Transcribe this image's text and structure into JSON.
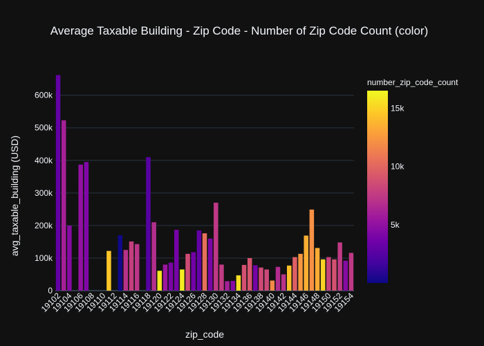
{
  "theme": {
    "background": "#111111",
    "plot_background": "#111111",
    "grid_color": "#283442",
    "text_color": "#f2f5fa"
  },
  "chart_data": {
    "type": "bar",
    "title": "Average Taxable Building - Zip Code - Number of Zip Code Count (color)",
    "xlabel": "zip_code",
    "ylabel": "avg_taxable_building (USD)",
    "ylim": [
      0,
      680000
    ],
    "xlim": [
      19101.5,
      19154.5
    ],
    "grid": true,
    "y_ticks": [
      0,
      100000,
      200000,
      300000,
      400000,
      500000,
      600000
    ],
    "y_tick_labels": [
      "0",
      "100k",
      "200k",
      "300k",
      "400k",
      "500k",
      "600k"
    ],
    "x_ticks": [
      19102,
      19104,
      19106,
      19108,
      19110,
      19112,
      19114,
      19116,
      19118,
      19120,
      19122,
      19124,
      19126,
      19128,
      19130,
      19132,
      19134,
      19136,
      19138,
      19140,
      19142,
      19144,
      19146,
      19148,
      19150,
      19152,
      19154
    ],
    "x_tick_labels": [
      "19102",
      "19104",
      "19106",
      "19108",
      "19110",
      "19112",
      "19114",
      "19116",
      "19118",
      "19120",
      "19122",
      "19124",
      "19126",
      "19128",
      "19130",
      "19132",
      "19134",
      "19136",
      "19138",
      "19140",
      "19142",
      "19144",
      "19146",
      "19148",
      "19150",
      "19152",
      "19154"
    ],
    "colorbar": {
      "title": "number_zip_code_count",
      "min": 0,
      "max": 16500,
      "ticks": [
        5000,
        10000,
        15000
      ],
      "tick_labels": [
        "5k",
        "10k",
        "15k"
      ],
      "colorscale": [
        "#0d0887",
        "#46039f",
        "#7201a8",
        "#9c179e",
        "#bd3786",
        "#d8576b",
        "#ed7953",
        "#fb9f3a",
        "#fdca26",
        "#f0f921"
      ]
    },
    "bars": [
      {
        "zip": 19102,
        "value": 662000,
        "count": 3000
      },
      {
        "zip": 19103,
        "value": 523000,
        "count": 6000
      },
      {
        "zip": 19104,
        "value": 200000,
        "count": 4500
      },
      {
        "zip": 19106,
        "value": 387000,
        "count": 5000
      },
      {
        "zip": 19107,
        "value": 395000,
        "count": 4200
      },
      {
        "zip": 19111,
        "value": 122000,
        "count": 14500
      },
      {
        "zip": 19113,
        "value": 170000,
        "count": 100
      },
      {
        "zip": 19114,
        "value": 125000,
        "count": 7000
      },
      {
        "zip": 19115,
        "value": 151000,
        "count": 7800
      },
      {
        "zip": 19116,
        "value": 143000,
        "count": 7200
      },
      {
        "zip": 19118,
        "value": 410000,
        "count": 2500
      },
      {
        "zip": 19119,
        "value": 210000,
        "count": 6800
      },
      {
        "zip": 19120,
        "value": 61000,
        "count": 15800
      },
      {
        "zip": 19121,
        "value": 80000,
        "count": 5500
      },
      {
        "zip": 19122,
        "value": 86000,
        "count": 4000
      },
      {
        "zip": 19123,
        "value": 187000,
        "count": 3800
      },
      {
        "zip": 19124,
        "value": 65000,
        "count": 16000
      },
      {
        "zip": 19125,
        "value": 113000,
        "count": 8500
      },
      {
        "zip": 19126,
        "value": 118000,
        "count": 3700
      },
      {
        "zip": 19127,
        "value": 185000,
        "count": 3000
      },
      {
        "zip": 19128,
        "value": 176000,
        "count": 10500
      },
      {
        "zip": 19129,
        "value": 160000,
        "count": 4000
      },
      {
        "zip": 19130,
        "value": 270000,
        "count": 7400
      },
      {
        "zip": 19131,
        "value": 80000,
        "count": 7600
      },
      {
        "zip": 19132,
        "value": 29000,
        "count": 6000
      },
      {
        "zip": 19133,
        "value": 30000,
        "count": 4500
      },
      {
        "zip": 19134,
        "value": 47000,
        "count": 15500
      },
      {
        "zip": 19135,
        "value": 79000,
        "count": 8800
      },
      {
        "zip": 19136,
        "value": 100000,
        "count": 9000
      },
      {
        "zip": 19137,
        "value": 78000,
        "count": 3800
      },
      {
        "zip": 19138,
        "value": 71000,
        "count": 8500
      },
      {
        "zip": 19139,
        "value": 65000,
        "count": 8300
      },
      {
        "zip": 19140,
        "value": 31000,
        "count": 11800
      },
      {
        "zip": 19141,
        "value": 73000,
        "count": 6700
      },
      {
        "zip": 19142,
        "value": 50000,
        "count": 7000
      },
      {
        "zip": 19143,
        "value": 77000,
        "count": 14200
      },
      {
        "zip": 19144,
        "value": 103000,
        "count": 9600
      },
      {
        "zip": 19145,
        "value": 113000,
        "count": 12500
      },
      {
        "zip": 19146,
        "value": 169000,
        "count": 13500
      },
      {
        "zip": 19147,
        "value": 249000,
        "count": 12100
      },
      {
        "zip": 19148,
        "value": 131000,
        "count": 13400
      },
      {
        "zip": 19149,
        "value": 96000,
        "count": 15000
      },
      {
        "zip": 19150,
        "value": 103000,
        "count": 8000
      },
      {
        "zip": 19151,
        "value": 96000,
        "count": 8800
      },
      {
        "zip": 19152,
        "value": 148000,
        "count": 7500
      },
      {
        "zip": 19153,
        "value": 92000,
        "count": 4500
      },
      {
        "zip": 19154,
        "value": 116000,
        "count": 7400
      }
    ]
  }
}
